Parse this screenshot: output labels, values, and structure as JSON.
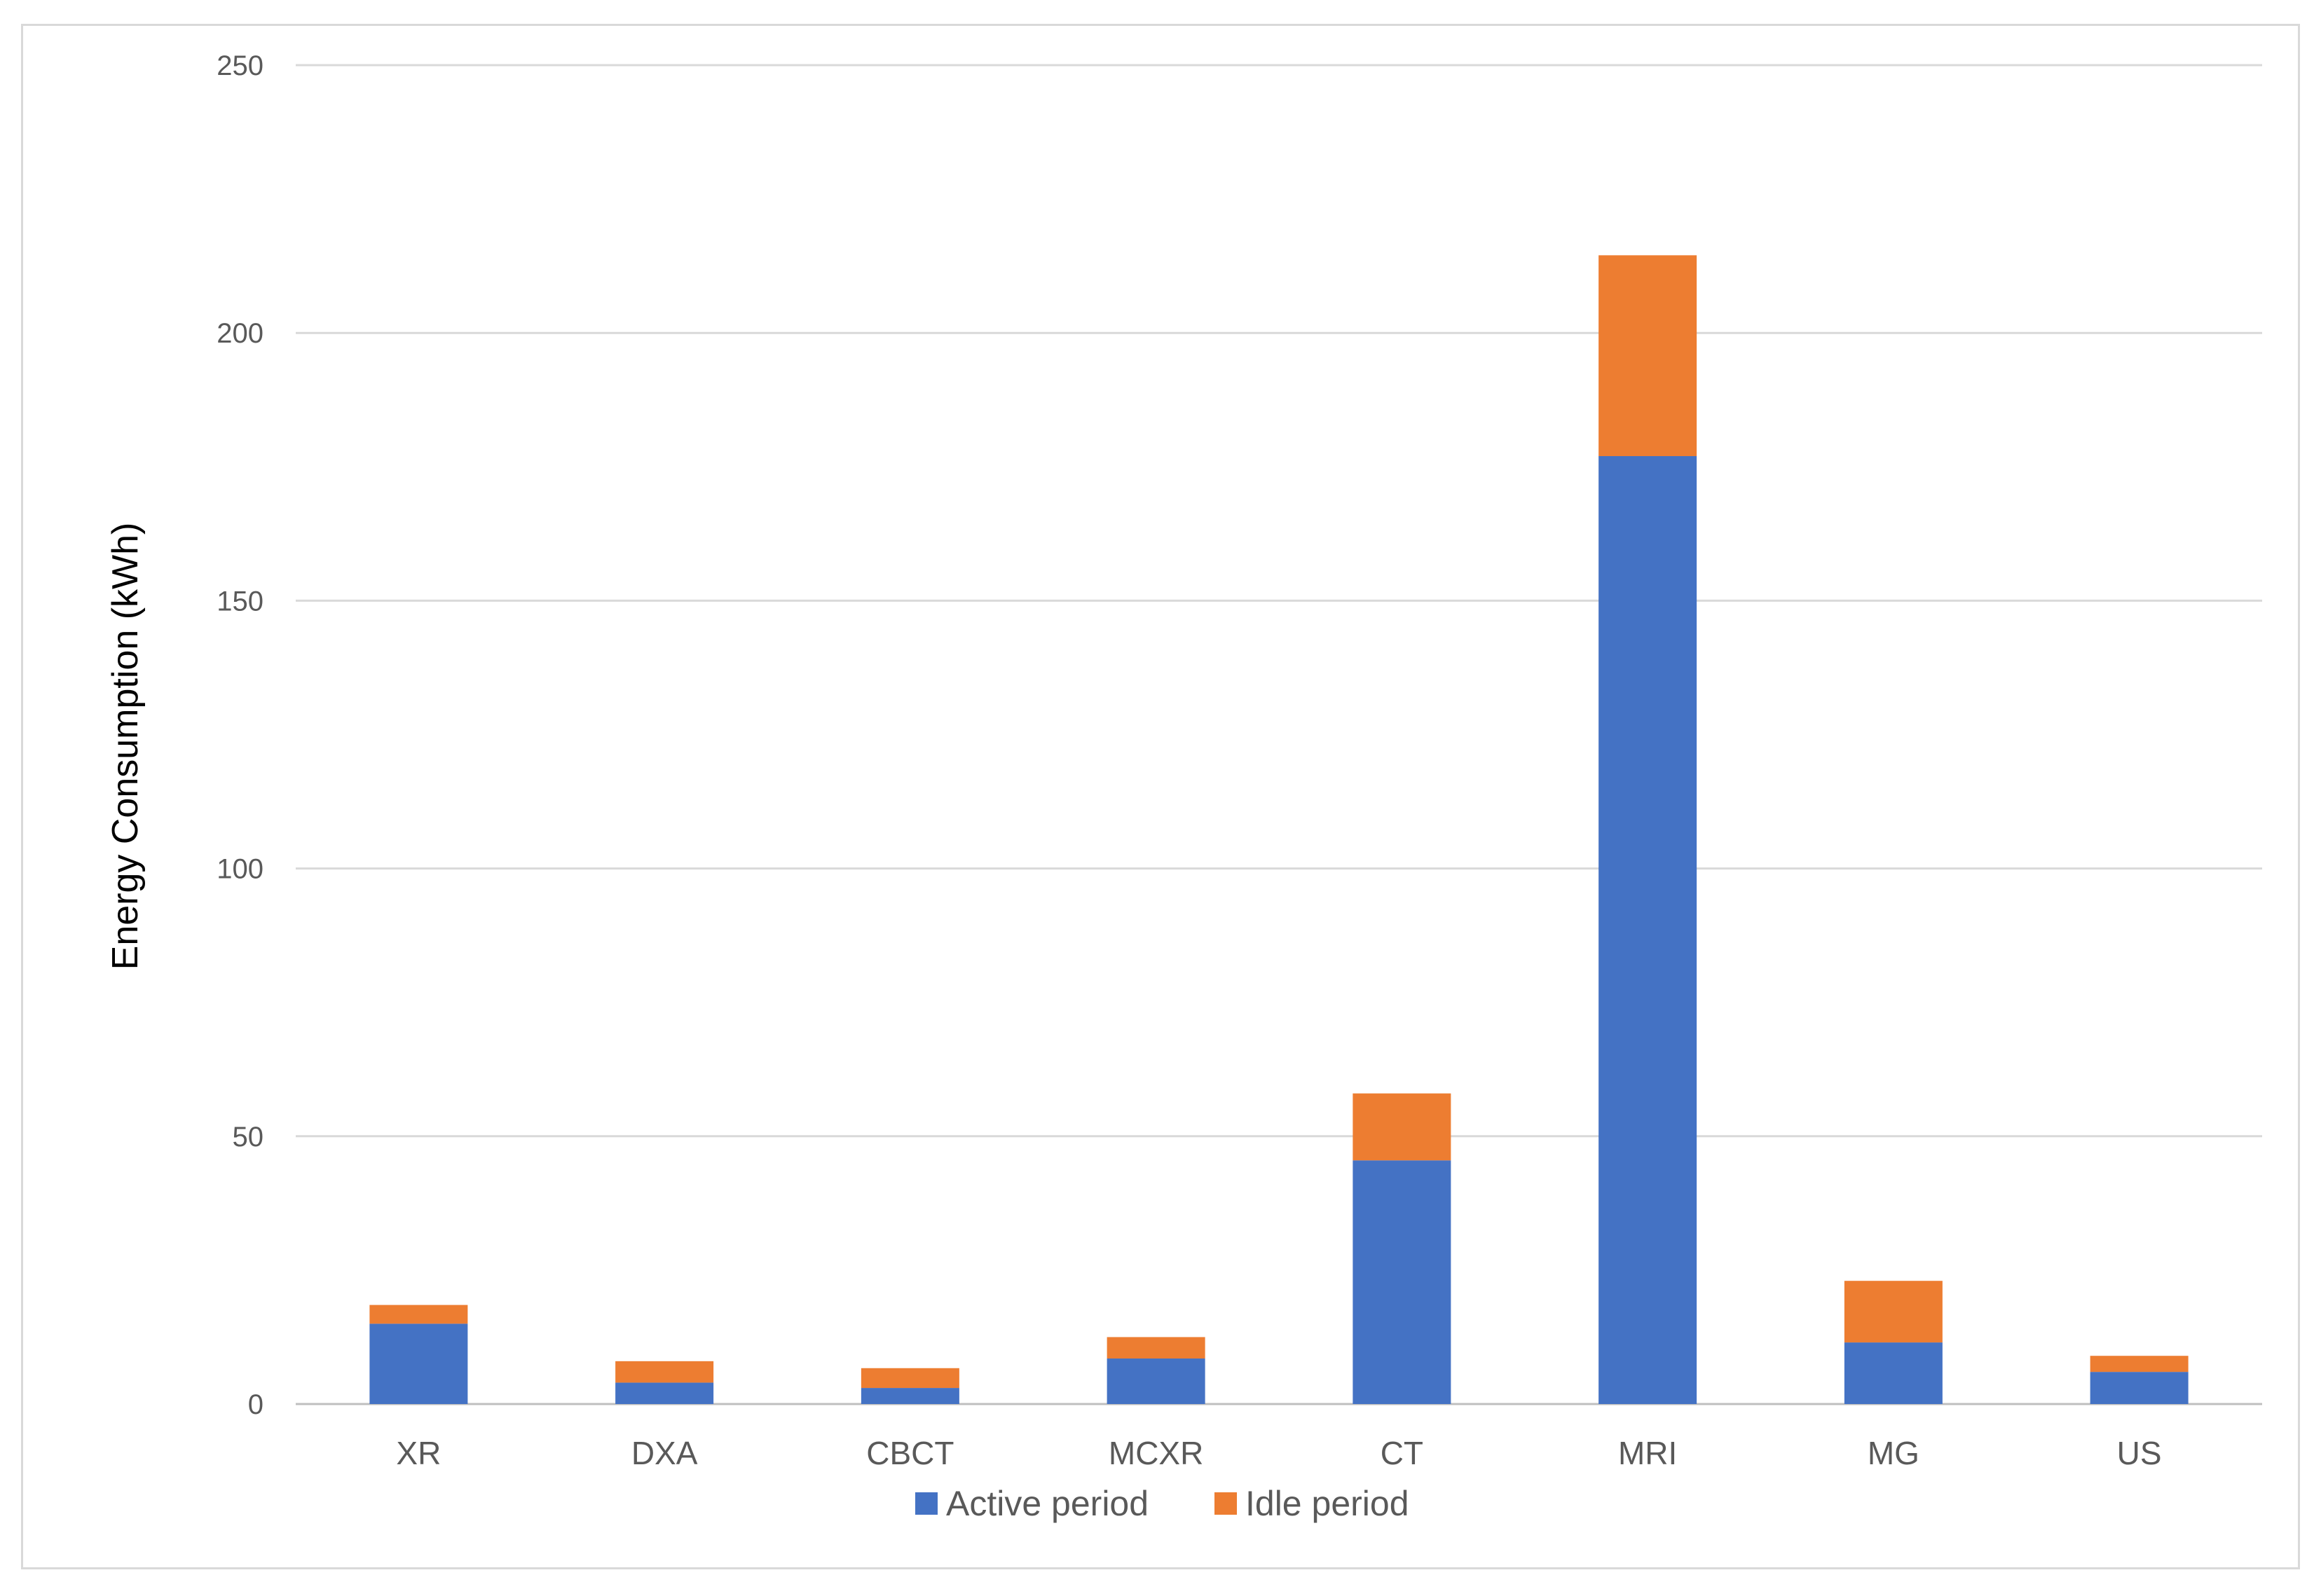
{
  "chart_data": {
    "type": "bar",
    "stacked": true,
    "title": "",
    "xlabel": "",
    "ylabel": "Energy Consumption (kWh)",
    "ylim": [
      0,
      250
    ],
    "yticks": [
      0,
      50,
      100,
      150,
      200,
      250
    ],
    "categories": [
      "XR",
      "DXA",
      "CBCT",
      "MCXR",
      "CT",
      "MRI",
      "MG",
      "US"
    ],
    "series": [
      {
        "name": "Active period",
        "color": "#4472c4",
        "values": [
          15,
          4,
          3,
          8.5,
          45.5,
          177,
          11.5,
          6
        ]
      },
      {
        "name": "Idle period",
        "color": "#ed7d31",
        "values": [
          3.5,
          4,
          3.7,
          4,
          12.5,
          37.5,
          11.5,
          3
        ]
      }
    ],
    "grid": true,
    "legend_position": "bottom"
  }
}
